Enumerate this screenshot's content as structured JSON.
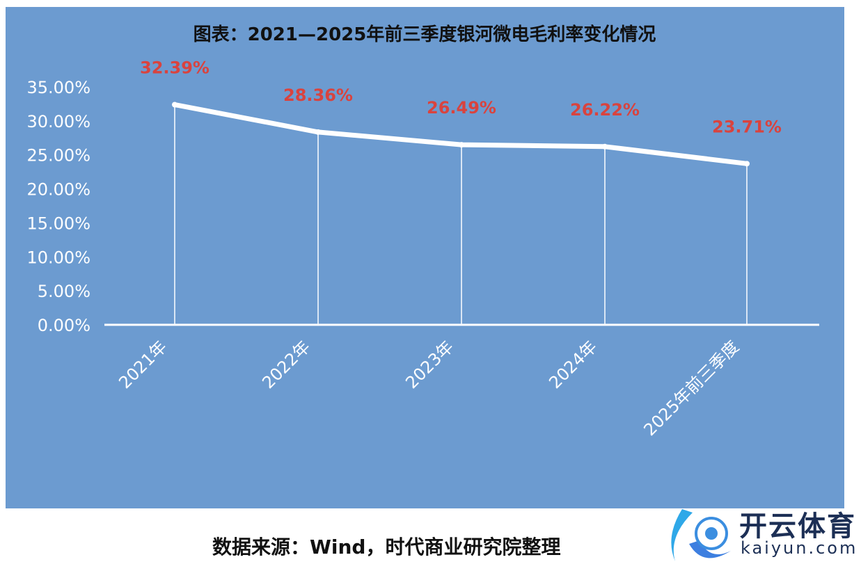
{
  "chart_data": {
    "type": "line",
    "title": "图表：2021—2025年前三季度银河微电毛利率变化情况",
    "categories": [
      "2021年",
      "2022年",
      "2023年",
      "2024年",
      "2025年前三季度"
    ],
    "series": [
      {
        "name": "毛利率",
        "values": [
          32.39,
          28.36,
          26.49,
          26.22,
          23.71
        ]
      }
    ],
    "data_labels": [
      "32.39%",
      "28.36%",
      "26.49%",
      "26.22%",
      "23.71%"
    ],
    "yticks": [
      "0.00%",
      "5.00%",
      "10.00%",
      "15.00%",
      "20.00%",
      "25.00%",
      "30.00%",
      "35.00%"
    ],
    "ylim": [
      0,
      35
    ],
    "xlabel": "",
    "ylabel": "",
    "colors": {
      "background": "#6c9bd0",
      "line": "#ffffff",
      "label": "#d9433e"
    }
  },
  "source": "数据来源：Wind，时代商业研究院整理",
  "watermark": {
    "cn": "开云体育",
    "en": "kaiyun.com"
  }
}
